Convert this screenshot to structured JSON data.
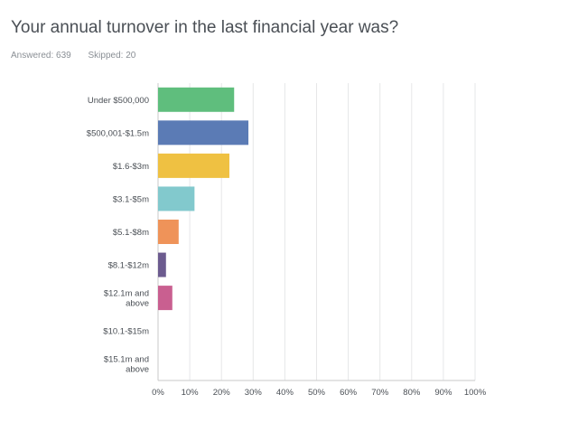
{
  "question": {
    "title": "Your annual turnover in the last financial year was?",
    "answered": "Answered: 639",
    "skipped": "Skipped: 20"
  },
  "chart_data": {
    "type": "bar",
    "orientation": "horizontal",
    "categories": [
      [
        "Under $500,000"
      ],
      [
        "$500,001-$1.5m"
      ],
      [
        "$1.6-$3m"
      ],
      [
        "$3.1-$5m"
      ],
      [
        "$5.1-$8m"
      ],
      [
        "$8.1-$12m"
      ],
      [
        "$12.1m and",
        "above"
      ],
      [
        "$10.1-$15m"
      ],
      [
        "$15.1m and",
        "above"
      ]
    ],
    "values": [
      24,
      28.5,
      22.5,
      11.5,
      6.5,
      2.5,
      4.5,
      0,
      0
    ],
    "colors": [
      "#5fbe7d",
      "#5b7bb5",
      "#efc142",
      "#82c9cd",
      "#ef9359",
      "#6c5b8f",
      "#c95f90",
      "#7f8c8d",
      "#7f8c8d"
    ],
    "xlim": [
      0,
      100
    ],
    "x_ticks": [
      "0%",
      "10%",
      "20%",
      "30%",
      "40%",
      "50%",
      "60%",
      "70%",
      "80%",
      "90%",
      "100%"
    ],
    "grid": true
  }
}
